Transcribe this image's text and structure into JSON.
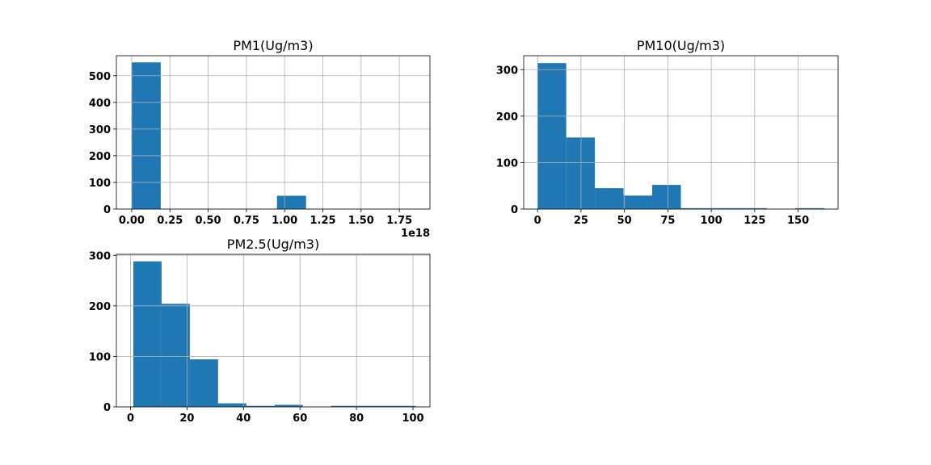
{
  "chart_data": [
    {
      "type": "histogram",
      "title": "PM1(Ug/m3)",
      "color": "#1f77b4",
      "xlim": [
        -0.1,
        1.95
      ],
      "ylim": [
        0,
        575
      ],
      "x_scale_label": "1e18",
      "x_ticks": [
        0.0,
        0.25,
        0.5,
        0.75,
        1.0,
        1.25,
        1.5,
        1.75
      ],
      "x_tick_labels": [
        "0.00",
        "0.25",
        "0.50",
        "0.75",
        "1.00",
        "1.25",
        "1.50",
        "1.75"
      ],
      "y_ticks": [
        0,
        100,
        200,
        300,
        400,
        500
      ],
      "y_tick_labels": [
        "0",
        "100",
        "200",
        "300",
        "400",
        "500"
      ],
      "bins": [
        0.0,
        0.19,
        0.38,
        0.57,
        0.76,
        0.95,
        1.14,
        1.33,
        1.52,
        1.71,
        1.9
      ],
      "counts": [
        550,
        0,
        0,
        0,
        0,
        50,
        0,
        0,
        0,
        0
      ],
      "grid": true
    },
    {
      "type": "histogram",
      "title": "PM10(Ug/m3)",
      "color": "#1f77b4",
      "xlim": [
        -8,
        173
      ],
      "ylim": [
        0,
        330
      ],
      "x_ticks": [
        0,
        25,
        50,
        75,
        100,
        125,
        150
      ],
      "x_tick_labels": [
        "0",
        "25",
        "50",
        "75",
        "100",
        "125",
        "150"
      ],
      "y_ticks": [
        0,
        100,
        200,
        300
      ],
      "y_tick_labels": [
        "0",
        "100",
        "200",
        "300"
      ],
      "bins": [
        0,
        16.5,
        33,
        49.5,
        66,
        82.5,
        99,
        115.5,
        132,
        148.5,
        165
      ],
      "counts": [
        314,
        154,
        45,
        29,
        52,
        2,
        2,
        2,
        0,
        2
      ],
      "grid": true
    },
    {
      "type": "histogram",
      "title": "PM2.5(Ug/m3)",
      "color": "#1f77b4",
      "xlim": [
        -5,
        106
      ],
      "ylim": [
        0,
        302
      ],
      "x_ticks": [
        0,
        20,
        40,
        60,
        80,
        100
      ],
      "x_tick_labels": [
        "0",
        "20",
        "40",
        "60",
        "80",
        "100"
      ],
      "y_ticks": [
        0,
        100,
        200,
        300
      ],
      "y_tick_labels": [
        "0",
        "100",
        "200",
        "300"
      ],
      "bins": [
        1,
        11,
        21,
        31,
        41,
        51,
        61,
        71,
        81,
        91,
        101
      ],
      "counts": [
        288,
        204,
        94,
        7,
        2,
        4,
        0,
        2,
        2,
        2
      ],
      "grid": true
    }
  ]
}
